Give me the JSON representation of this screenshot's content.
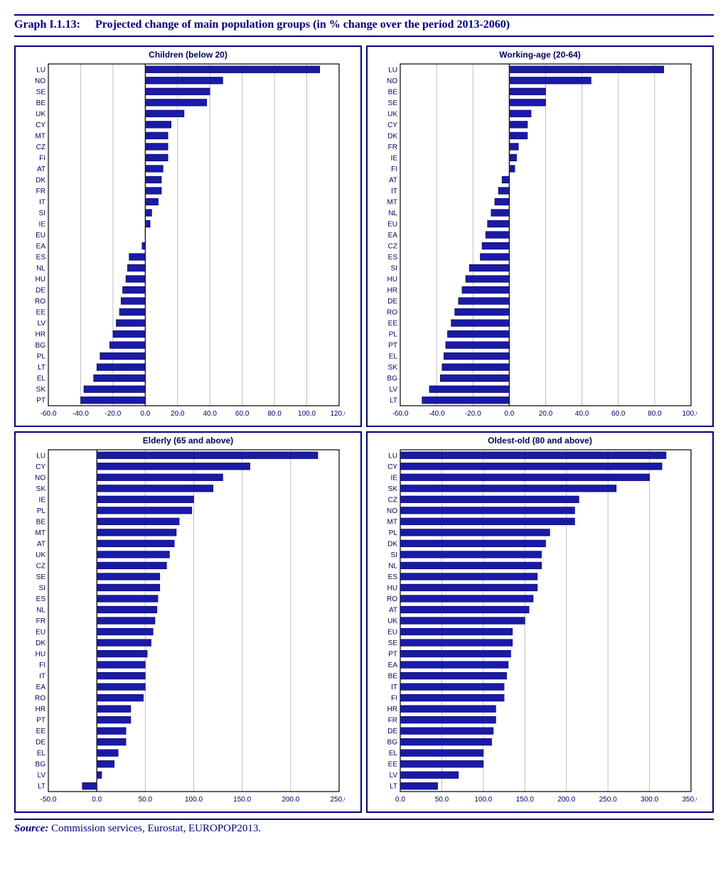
{
  "graph_id": "Graph I.1.13:",
  "graph_title": "Projected change of main population groups (in % change over the period 2013-2060)",
  "source_label": "Source:",
  "source_text": "Commission services, Eurostat, EUROPOP2013.",
  "styling": {
    "bar_color": "#1a1aa6",
    "bar_edge": "#000066",
    "grid_color": "#bfbfbf",
    "axis_color": "#000000",
    "tick_font_size": 10,
    "title_font_size": 12,
    "label_font": "Arial, sans-serif",
    "background": "#ffffff",
    "panel_border": "#000088"
  },
  "panels": [
    {
      "title": "Children (below 20)",
      "xmin": -60,
      "xmax": 120,
      "xstep": 20,
      "series": [
        {
          "label": "LU",
          "value": 108
        },
        {
          "label": "NO",
          "value": 48
        },
        {
          "label": "SE",
          "value": 40
        },
        {
          "label": "BE",
          "value": 38
        },
        {
          "label": "UK",
          "value": 24
        },
        {
          "label": "CY",
          "value": 16
        },
        {
          "label": "MT",
          "value": 14
        },
        {
          "label": "CZ",
          "value": 14
        },
        {
          "label": "FI",
          "value": 14
        },
        {
          "label": "AT",
          "value": 11
        },
        {
          "label": "DK",
          "value": 10
        },
        {
          "label": "FR",
          "value": 10
        },
        {
          "label": "IT",
          "value": 8
        },
        {
          "label": "SI",
          "value": 4
        },
        {
          "label": "IE",
          "value": 3
        },
        {
          "label": "EU",
          "value": 0
        },
        {
          "label": "EA",
          "value": -2
        },
        {
          "label": "ES",
          "value": -10
        },
        {
          "label": "NL",
          "value": -11
        },
        {
          "label": "HU",
          "value": -12
        },
        {
          "label": "DE",
          "value": -14
        },
        {
          "label": "RO",
          "value": -15
        },
        {
          "label": "EE",
          "value": -16
        },
        {
          "label": "LV",
          "value": -18
        },
        {
          "label": "HR",
          "value": -20
        },
        {
          "label": "BG",
          "value": -22
        },
        {
          "label": "PL",
          "value": -28
        },
        {
          "label": "LT",
          "value": -30
        },
        {
          "label": "EL",
          "value": -32
        },
        {
          "label": "SK",
          "value": -38
        },
        {
          "label": "PT",
          "value": -40
        }
      ]
    },
    {
      "title": "Working-age (20-64)",
      "xmin": -60,
      "xmax": 100,
      "xstep": 20,
      "series": [
        {
          "label": "LU",
          "value": 85
        },
        {
          "label": "NO",
          "value": 45
        },
        {
          "label": "BE",
          "value": 20
        },
        {
          "label": "SE",
          "value": 20
        },
        {
          "label": "UK",
          "value": 12
        },
        {
          "label": "CY",
          "value": 10
        },
        {
          "label": "DK",
          "value": 10
        },
        {
          "label": "FR",
          "value": 5
        },
        {
          "label": "IE",
          "value": 4
        },
        {
          "label": "FI",
          "value": 3
        },
        {
          "label": "AT",
          "value": -4
        },
        {
          "label": "IT",
          "value": -6
        },
        {
          "label": "MT",
          "value": -8
        },
        {
          "label": "NL",
          "value": -10
        },
        {
          "label": "EU",
          "value": -12
        },
        {
          "label": "EA",
          "value": -13
        },
        {
          "label": "CZ",
          "value": -15
        },
        {
          "label": "ES",
          "value": -16
        },
        {
          "label": "SI",
          "value": -22
        },
        {
          "label": "HU",
          "value": -24
        },
        {
          "label": "HR",
          "value": -26
        },
        {
          "label": "DE",
          "value": -28
        },
        {
          "label": "RO",
          "value": -30
        },
        {
          "label": "EE",
          "value": -32
        },
        {
          "label": "PL",
          "value": -34
        },
        {
          "label": "PT",
          "value": -35
        },
        {
          "label": "EL",
          "value": -36
        },
        {
          "label": "SK",
          "value": -37
        },
        {
          "label": "BG",
          "value": -38
        },
        {
          "label": "LV",
          "value": -44
        },
        {
          "label": "LT",
          "value": -48
        }
      ]
    },
    {
      "title": "Elderly (65 and above)",
      "xmin": -50,
      "xmax": 250,
      "xstep": 50,
      "series": [
        {
          "label": "LU",
          "value": 228
        },
        {
          "label": "CY",
          "value": 158
        },
        {
          "label": "NO",
          "value": 130
        },
        {
          "label": "SK",
          "value": 120
        },
        {
          "label": "IE",
          "value": 100
        },
        {
          "label": "PL",
          "value": 98
        },
        {
          "label": "BE",
          "value": 85
        },
        {
          "label": "MT",
          "value": 82
        },
        {
          "label": "AT",
          "value": 80
        },
        {
          "label": "UK",
          "value": 75
        },
        {
          "label": "CZ",
          "value": 72
        },
        {
          "label": "SE",
          "value": 65
        },
        {
          "label": "SI",
          "value": 65
        },
        {
          "label": "ES",
          "value": 63
        },
        {
          "label": "NL",
          "value": 62
        },
        {
          "label": "FR",
          "value": 60
        },
        {
          "label": "EU",
          "value": 58
        },
        {
          "label": "DK",
          "value": 56
        },
        {
          "label": "HU",
          "value": 52
        },
        {
          "label": "FI",
          "value": 50
        },
        {
          "label": "IT",
          "value": 50
        },
        {
          "label": "EA",
          "value": 50
        },
        {
          "label": "RO",
          "value": 48
        },
        {
          "label": "HR",
          "value": 35
        },
        {
          "label": "PT",
          "value": 35
        },
        {
          "label": "EE",
          "value": 30
        },
        {
          "label": "DE",
          "value": 30
        },
        {
          "label": "EL",
          "value": 22
        },
        {
          "label": "BG",
          "value": 18
        },
        {
          "label": "LV",
          "value": 5
        },
        {
          "label": "LT",
          "value": -15
        }
      ]
    },
    {
      "title": "Oldest-old (80 and above)",
      "xmin": 0,
      "xmax": 350,
      "xstep": 50,
      "series": [
        {
          "label": "LU",
          "value": 320
        },
        {
          "label": "CY",
          "value": 315
        },
        {
          "label": "IE",
          "value": 300
        },
        {
          "label": "SK",
          "value": 260
        },
        {
          "label": "CZ",
          "value": 215
        },
        {
          "label": "NO",
          "value": 210
        },
        {
          "label": "MT",
          "value": 210
        },
        {
          "label": "PL",
          "value": 180
        },
        {
          "label": "DK",
          "value": 175
        },
        {
          "label": "SI",
          "value": 170
        },
        {
          "label": "NL",
          "value": 170
        },
        {
          "label": "ES",
          "value": 165
        },
        {
          "label": "HU",
          "value": 165
        },
        {
          "label": "RO",
          "value": 160
        },
        {
          "label": "AT",
          "value": 155
        },
        {
          "label": "UK",
          "value": 150
        },
        {
          "label": "EU",
          "value": 135
        },
        {
          "label": "SE",
          "value": 135
        },
        {
          "label": "PT",
          "value": 133
        },
        {
          "label": "EA",
          "value": 130
        },
        {
          "label": "BE",
          "value": 128
        },
        {
          "label": "IT",
          "value": 125
        },
        {
          "label": "FI",
          "value": 125
        },
        {
          "label": "HR",
          "value": 115
        },
        {
          "label": "FR",
          "value": 115
        },
        {
          "label": "DE",
          "value": 112
        },
        {
          "label": "BG",
          "value": 110
        },
        {
          "label": "EL",
          "value": 100
        },
        {
          "label": "EE",
          "value": 100
        },
        {
          "label": "LV",
          "value": 70
        },
        {
          "label": "LT",
          "value": 45
        }
      ]
    }
  ]
}
